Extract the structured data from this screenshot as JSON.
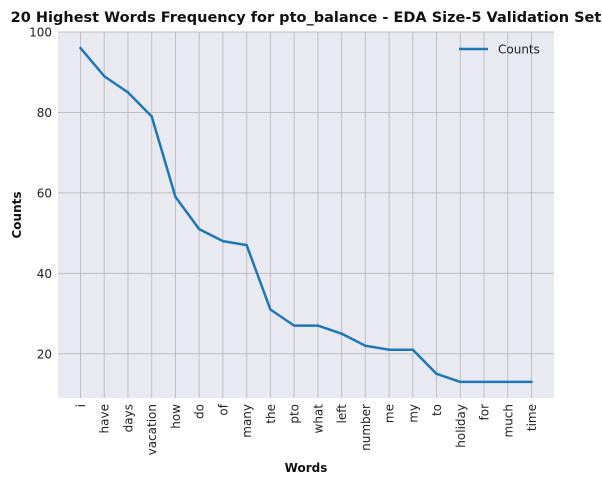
{
  "chart_data": {
    "type": "line",
    "title": "20 Highest Words Frequency for pto_balance - EDA Size-5 Validation Set",
    "xlabel": "Words",
    "ylabel": "Counts",
    "categories": [
      "i",
      "have",
      "days",
      "vacation",
      "how",
      "do",
      "of",
      "many",
      "the",
      "pto",
      "what",
      "left",
      "number",
      "me",
      "my",
      "to",
      "holiday",
      "for",
      "much",
      "time"
    ],
    "series": [
      {
        "name": "Counts",
        "values": [
          96,
          89,
          85,
          79,
          59,
          51,
          48,
          47,
          31,
          27,
          27,
          25,
          22,
          21,
          21,
          15,
          13,
          13,
          13,
          13
        ]
      }
    ],
    "ylim": [
      9,
      100
    ],
    "yticks": [
      20,
      40,
      60,
      80,
      100
    ],
    "grid": true,
    "legend": "top-right",
    "colors": {
      "line": "#1f77b4",
      "background": "#e9e9f2",
      "grid": "#bfbfbf"
    }
  }
}
